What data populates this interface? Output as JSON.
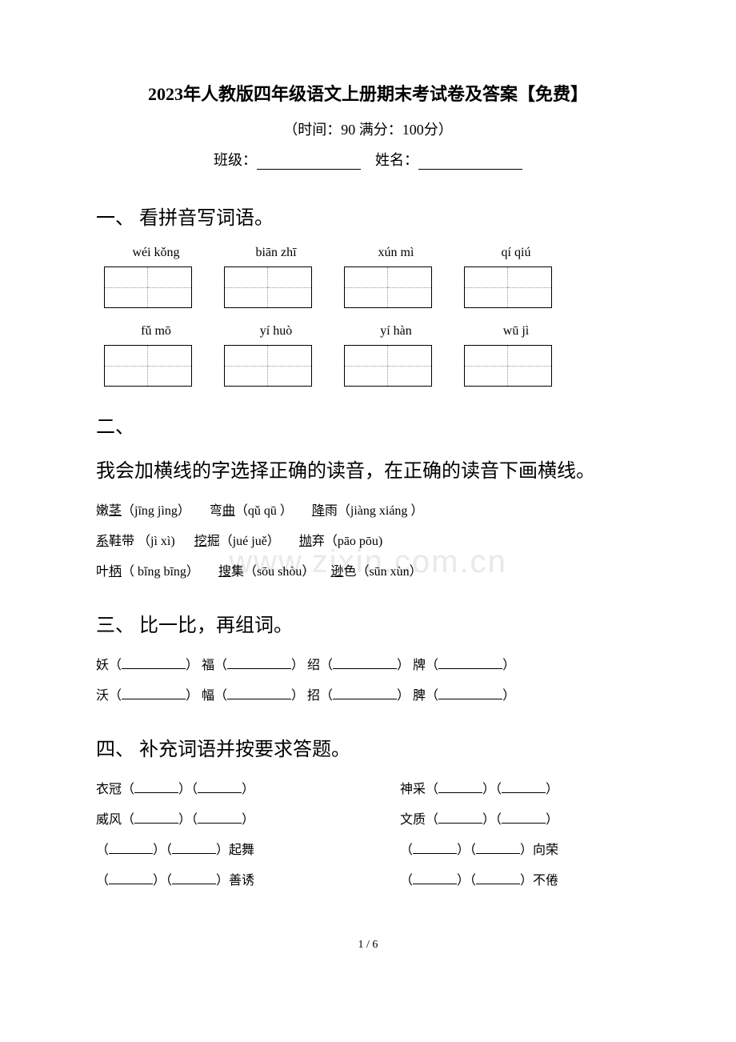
{
  "header": {
    "title": "2023年人教版四年级语文上册期末考试卷及答案【免费】",
    "subtitle": "（时间：90    满分：100分）",
    "class_label": "班级：",
    "name_label": "姓名："
  },
  "section1": {
    "heading": "一、  看拼音写词语。",
    "row1": [
      "wéi kǒng",
      "biān zhī",
      "xún mì",
      "qí qiú"
    ],
    "row2": [
      "fǔ mō",
      "yí huò",
      "yí hàn",
      "wū jì"
    ]
  },
  "section2": {
    "heading_num": "二、",
    "heading_text": "我会加横线的字选择正确的读音，在正确的读音下画横线。",
    "line1_a": "嫩",
    "line1_a_u": "茎",
    "line1_a_py": "（jīng  jìng）",
    "line1_b": "弯",
    "line1_b_u": "曲",
    "line1_b_py": "（qǔ  qū ）",
    "line1_c_u": "降",
    "line1_c": "雨（jiàng  xiáng ）",
    "line2_a_u": "系",
    "line2_a": "鞋带 （jì  xì)",
    "line2_b_u": "挖",
    "line2_b": "掘（jué  juě）",
    "line2_c_u": "抛",
    "line2_c": "弃（pāo  pōu)",
    "line3_a": "叶",
    "line3_a_u": "柄",
    "line3_a_py": "（ bǐng bīng）",
    "line3_b_u": "搜",
    "line3_b": "集（sōu  shòu）",
    "line3_c_u": "逊",
    "line3_c": "色（sūn  xùn）"
  },
  "section3": {
    "heading": "三、  比一比，再组词。",
    "row1": [
      "妖（",
      "）  福（",
      "）  绍（",
      "）  牌（",
      "）"
    ],
    "row2": [
      "沃（",
      "）  幅（",
      "）  招（",
      "）  脾（",
      "）"
    ]
  },
  "section4": {
    "heading": "四、  补充词语并按要求答题。",
    "left": [
      {
        "pre": "衣冠（",
        "mid": "）（",
        "suf": "）"
      },
      {
        "pre": "威风（",
        "mid": "）（",
        "suf": "）"
      },
      {
        "pre": "（",
        "mid": "）（",
        "suf": "）起舞"
      },
      {
        "pre": "（",
        "mid": "）（",
        "suf": "）善诱"
      }
    ],
    "right": [
      {
        "pre": "神采（",
        "mid": "）（",
        "suf": "）"
      },
      {
        "pre": "文质（",
        "mid": "）（",
        "suf": "）"
      },
      {
        "pre": "（",
        "mid": "）（",
        "suf": "）向荣"
      },
      {
        "pre": "（",
        "mid": "）（",
        "suf": "）不倦"
      }
    ]
  },
  "footer": {
    "page": "1 / 6"
  },
  "watermark": "www.zixin.com.cn"
}
